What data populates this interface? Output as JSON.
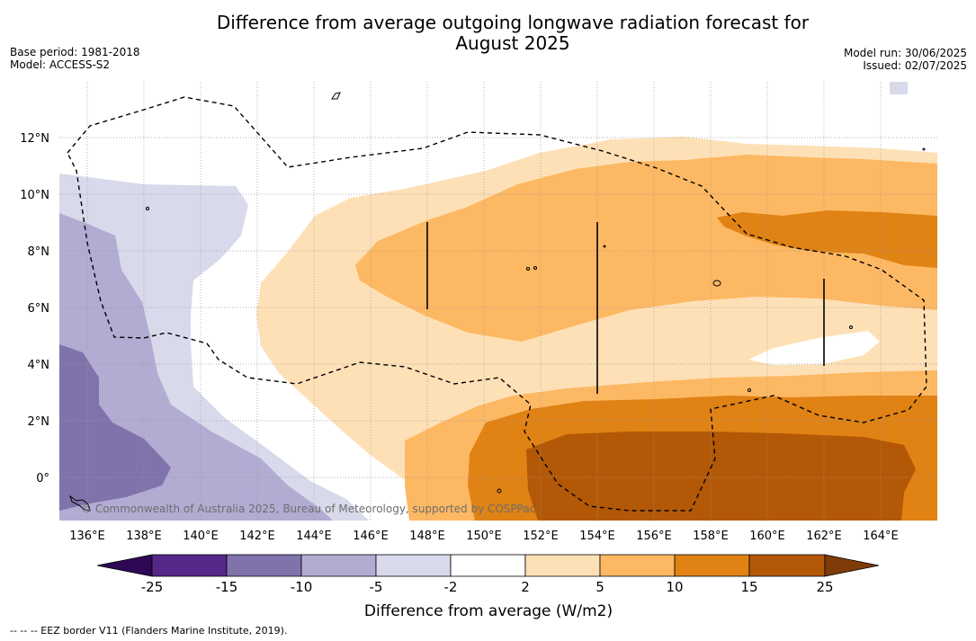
{
  "title_line1": "Difference from average outgoing longwave radiation forecast for",
  "title_line2": "August 2025",
  "meta_left": [
    "Base period: 1981-2018",
    "Model: ACCESS-S2"
  ],
  "meta_right": [
    "Model run: 30/06/2025",
    "Issued: 02/07/2025"
  ],
  "x_ticks": [
    "136°E",
    "138°E",
    "140°E",
    "142°E",
    "144°E",
    "146°E",
    "148°E",
    "150°E",
    "152°E",
    "154°E",
    "156°E",
    "158°E",
    "160°E",
    "162°E",
    "164°E"
  ],
  "y_ticks": [
    "12°N",
    "10°N",
    "8°N",
    "6°N",
    "4°N",
    "2°N",
    "0°"
  ],
  "copyright": "© Commonwealth of Australia 2025, Bureau of Meteorology, supported by COSPPac",
  "colorbar": {
    "label": "Difference from average (W/m2)",
    "ticks": [
      "-25",
      "-15",
      "-10",
      "-5",
      "-2",
      "2",
      "5",
      "10",
      "15",
      "25"
    ],
    "colors": [
      "#2e0854",
      "#542788",
      "#8073ac",
      "#b2abd2",
      "#d8daeb",
      "#ffffff",
      "#fee0b6",
      "#fdb863",
      "#e08214",
      "#b35806",
      "#7f3b08"
    ]
  },
  "footnote": "--  --  -- EEZ border V11 (Flanders Marine Institute, 2019)."
}
